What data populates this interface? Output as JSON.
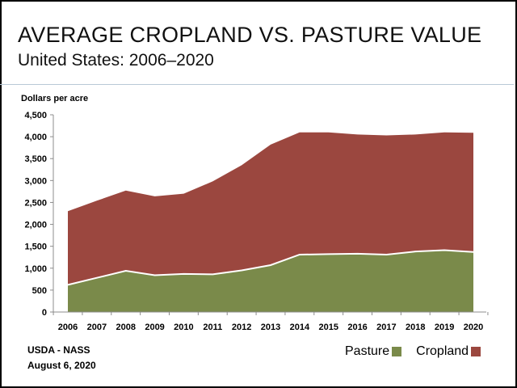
{
  "header": {
    "title": "AVERAGE CROPLAND VS. PASTURE VALUE",
    "subtitle": "United States: 2006–2020"
  },
  "footer": {
    "source": "USDA - NASS",
    "date": "August 6, 2020"
  },
  "legend": [
    {
      "label": "Pasture",
      "color": "#7a8a4a"
    },
    {
      "label": "Cropland",
      "color": "#9b473f"
    }
  ],
  "chart_data": {
    "type": "area",
    "ylabel": "Dollars per acre",
    "ylim": [
      0,
      4500
    ],
    "yticks": [
      0,
      500,
      1000,
      1500,
      2000,
      2500,
      3000,
      3500,
      4000,
      4500
    ],
    "ytick_labels": [
      "0",
      "500",
      "1,000",
      "1,500",
      "2,000",
      "2,500",
      "3,000",
      "3,500",
      "4,000",
      "4,500"
    ],
    "x": [
      "2006",
      "2007",
      "2008",
      "2009",
      "2010",
      "2011",
      "2012",
      "2013",
      "2014",
      "2015",
      "2016",
      "2017",
      "2018",
      "2019",
      "2020"
    ],
    "series": [
      {
        "name": "Pasture",
        "color": "#7a8a4a",
        "values": [
          620,
          780,
          940,
          840,
          870,
          860,
          950,
          1070,
          1310,
          1320,
          1330,
          1310,
          1380,
          1410,
          1370
        ]
      },
      {
        "name": "Cropland",
        "color": "#9b473f",
        "values": [
          2300,
          2540,
          2770,
          2640,
          2700,
          2980,
          3350,
          3820,
          4100,
          4100,
          4050,
          4030,
          4050,
          4100,
          4090
        ]
      }
    ],
    "grid": false,
    "legend_position": "bottom-right"
  }
}
